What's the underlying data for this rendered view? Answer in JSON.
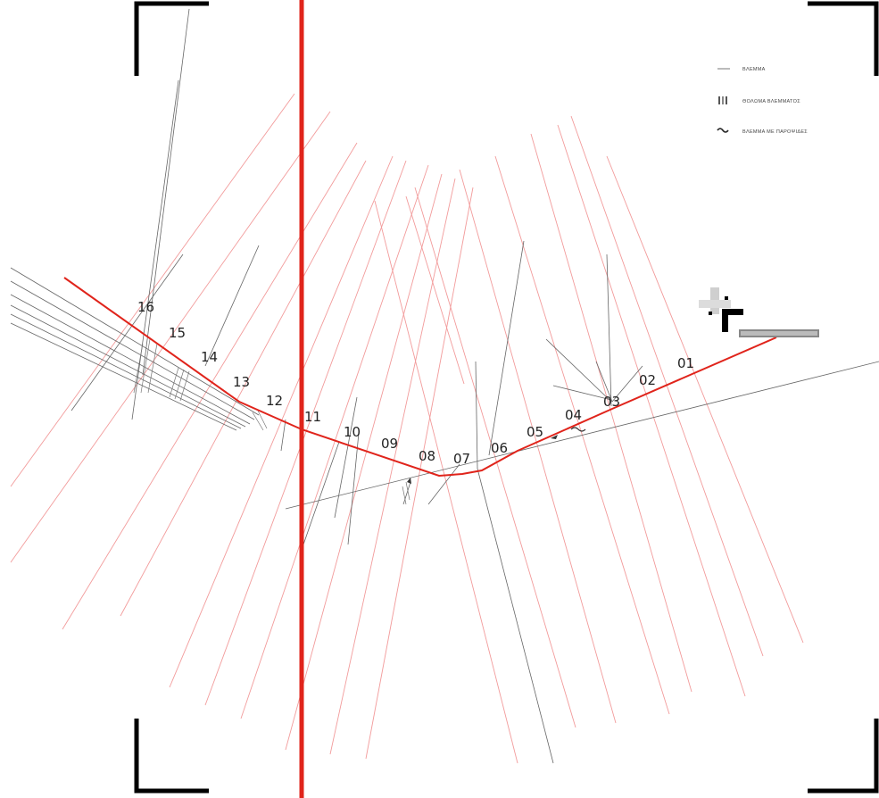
{
  "colors": {
    "route": "#e0241b",
    "axis": "#e0241b",
    "sightline": "#f08a8a",
    "structure": "#555555",
    "frame": "#000000",
    "background": "#ffffff"
  },
  "stations": [
    "01",
    "02",
    "03",
    "04",
    "05",
    "06",
    "07",
    "08",
    "09",
    "10",
    "11",
    "12",
    "13",
    "14",
    "15",
    "16"
  ],
  "legend": {
    "items": [
      {
        "icon": "line-swatch-icon",
        "label": "ΒΛΕΜΜΑ"
      },
      {
        "icon": "rectangle-swatch-icon",
        "label": "ΘΟΛΩΜΑ ΒΛΕΜΜΑΤΟΣ"
      },
      {
        "icon": "wave-swatch-icon",
        "label": "ΒΛΕΜΜΑ ΜΕ ΠΑΡΟΨΙΔΕΣ"
      }
    ]
  },
  "scale_label": "",
  "icons": [
    "north-arrow-icon",
    "frame-corner-icon"
  ]
}
